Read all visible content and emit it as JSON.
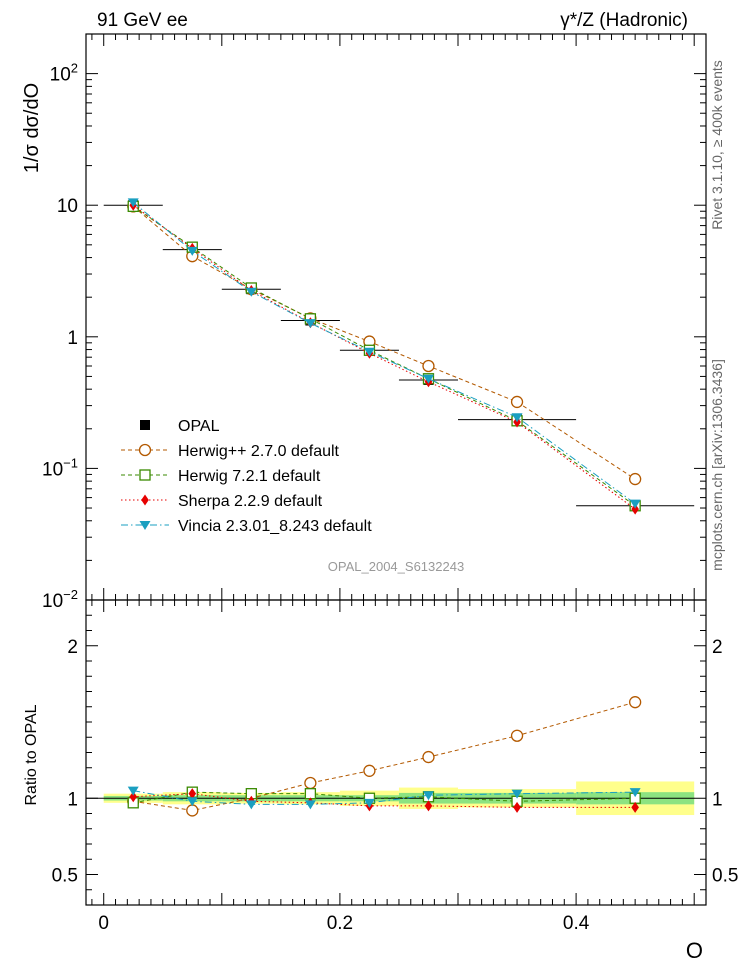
{
  "header": {
    "left": "91 GeV ee",
    "right": "γ*/Z (Hadronic)"
  },
  "side": {
    "rivet": "Rivet 3.1.10, ≥ 400k events",
    "mcplots": "mcplots.cern.ch [arXiv:1306.3436]"
  },
  "watermark": "OPAL_2004_S6132243",
  "chart_data": [
    {
      "type": "scatter",
      "panel": "main",
      "yscale": "log",
      "ylabel": "1/σ dσ/dO",
      "xlabel": "O",
      "xlim": [
        -0.015,
        0.51
      ],
      "ylim": [
        0.01,
        200
      ],
      "yticks": [
        {
          "value": 0.01,
          "base": "10",
          "exp": "−2"
        },
        {
          "value": 0.1,
          "base": "10",
          "exp": "−1"
        },
        {
          "value": 1,
          "base": "1",
          "exp": ""
        },
        {
          "value": 10,
          "base": "10",
          "exp": ""
        },
        {
          "value": 100,
          "base": "10",
          "exp": "2"
        }
      ],
      "x": [
        0.025,
        0.075,
        0.125,
        0.175,
        0.225,
        0.275,
        0.35,
        0.45
      ],
      "xerr": [
        0.025,
        0.025,
        0.025,
        0.025,
        0.025,
        0.025,
        0.05,
        0.05
      ],
      "series": [
        {
          "name": "OPAL",
          "style": "data",
          "color": "#000000",
          "marker": "square-filled",
          "values": [
            10.0,
            4.6,
            2.3,
            1.33,
            0.79,
            0.47,
            0.235,
            0.052
          ]
        },
        {
          "name": "Herwig++ 2.7.0 default",
          "style": "dashed",
          "color": "#b35900",
          "marker": "circle-open",
          "values": [
            9.8,
            4.1,
            2.3,
            1.38,
            0.92,
            0.6,
            0.32,
            0.083
          ]
        },
        {
          "name": "Herwig 7.2.1 default",
          "style": "dashed",
          "color": "#3a8a00",
          "marker": "square-open",
          "values": [
            9.8,
            4.8,
            2.35,
            1.37,
            0.79,
            0.48,
            0.23,
            0.052
          ]
        },
        {
          "name": "Sherpa 2.2.9 default",
          "style": "dotted",
          "color": "#e60000",
          "marker": "diamond-filled",
          "values": [
            10.0,
            4.7,
            2.25,
            1.28,
            0.75,
            0.455,
            0.225,
            0.049
          ]
        },
        {
          "name": "Vincia 2.3.01_8.243 default",
          "style": "dashdot",
          "color": "#1a9fc0",
          "marker": "triangle-down-filled",
          "values": [
            10.5,
            4.5,
            2.2,
            1.27,
            0.77,
            0.48,
            0.245,
            0.054
          ]
        }
      ]
    },
    {
      "type": "scatter",
      "panel": "ratio",
      "ylabel": "Ratio to OPAL",
      "xlabel": "O",
      "xlim": [
        -0.015,
        0.51
      ],
      "ylim": [
        0.3,
        2.3
      ],
      "yticks": [
        {
          "value": 0.5,
          "label": "0.5"
        },
        {
          "value": 1,
          "label": "1"
        },
        {
          "value": 2,
          "label": "2"
        }
      ],
      "xticks": [
        {
          "value": 0,
          "label": "0"
        },
        {
          "value": 0.2,
          "label": "0.2"
        },
        {
          "value": 0.4,
          "label": "0.4"
        }
      ],
      "band_stat": [
        0.015,
        0.02,
        0.02,
        0.02,
        0.02,
        0.035,
        0.035,
        0.04
      ],
      "band_total": [
        0.03,
        0.04,
        0.035,
        0.04,
        0.05,
        0.07,
        0.06,
        0.11
      ],
      "series": [
        {
          "name": "Herwig++ 2.7.0 default",
          "values": [
            0.98,
            0.92,
            1.0,
            1.1,
            1.18,
            1.27,
            1.41,
            1.63
          ]
        },
        {
          "name": "Herwig 7.2.1 default",
          "values": [
            0.97,
            1.04,
            1.03,
            1.03,
            1.0,
            1.01,
            0.98,
            1.0
          ]
        },
        {
          "name": "Sherpa 2.2.9 default",
          "values": [
            1.01,
            1.03,
            0.98,
            0.97,
            0.95,
            0.95,
            0.94,
            0.94
          ]
        },
        {
          "name": "Vincia 2.3.01_8.243 default",
          "values": [
            1.05,
            0.98,
            0.96,
            0.96,
            0.97,
            1.02,
            1.03,
            1.04
          ]
        }
      ]
    }
  ]
}
